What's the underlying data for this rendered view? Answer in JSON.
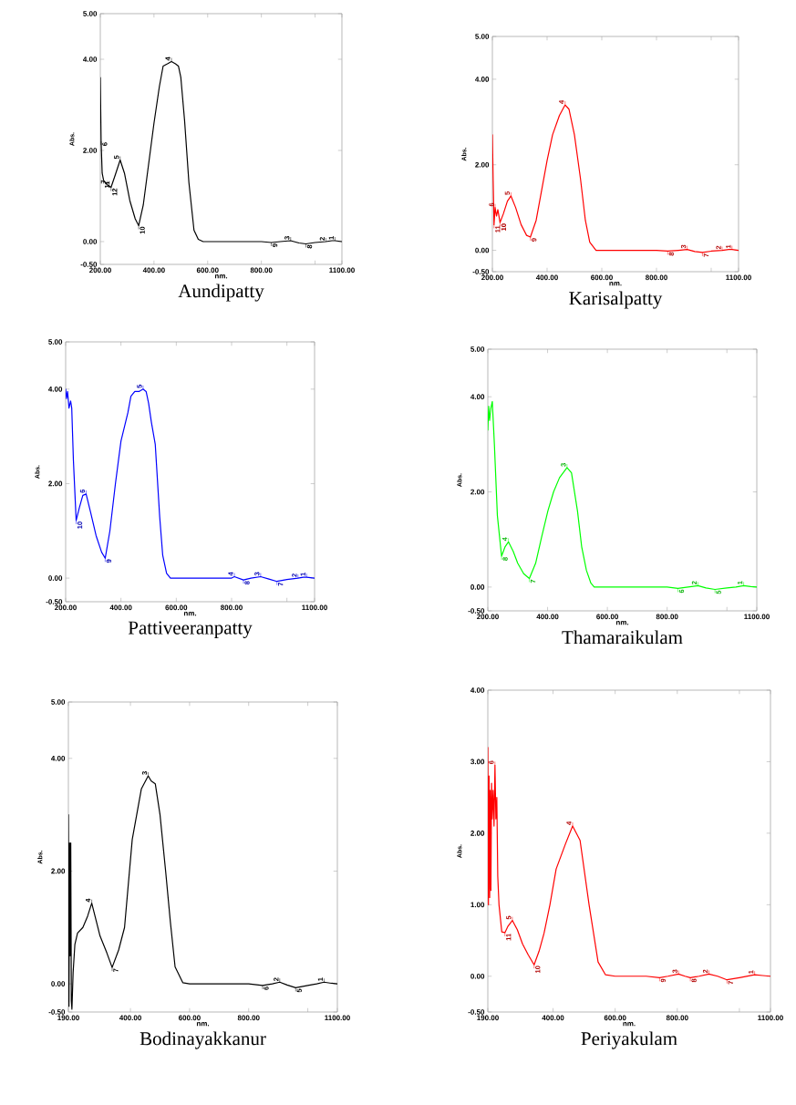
{
  "chart_data": [
    {
      "type": "line",
      "title": "Aundipatty",
      "xlabel": "nm.",
      "ylabel": "Abs.",
      "marker": "none",
      "x": [
        200,
        203,
        207,
        212,
        218,
        225,
        240,
        255,
        274,
        290,
        310,
        330,
        343,
        360,
        380,
        400,
        420,
        434,
        450,
        465,
        480,
        491,
        500,
        514,
        530,
        549,
        565,
        583,
        600,
        700,
        800,
        837,
        870,
        909,
        940,
        966,
        1000,
        1040,
        1063,
        1074,
        1100
      ],
      "series": [
        {
          "color": "#000000",
          "values": [
            3.6,
            2.2,
            1.5,
            1.35,
            1.3,
            1.25,
            1.19,
            1.45,
            1.79,
            1.5,
            0.9,
            0.5,
            0.35,
            0.8,
            1.7,
            2.6,
            3.4,
            3.85,
            3.9,
            3.95,
            3.9,
            3.85,
            3.6,
            2.65,
            1.3,
            0.25,
            0.05,
            0,
            0,
            0,
            0,
            -0.02,
            0,
            0.02,
            -0.03,
            -0.05,
            -0.02,
            0,
            0.02,
            0.02,
            0
          ]
        }
      ],
      "xlim": [
        200,
        1100
      ],
      "ylim": [
        -0.5,
        5
      ],
      "xticks": [
        {
          "value": 200,
          "label": "200.00"
        },
        {
          "value": 400,
          "label": "400.00"
        },
        {
          "value": 600,
          "label": "600.00"
        },
        {
          "value": 800,
          "label": "800.00"
        },
        {
          "value": 1000,
          "label": null
        },
        {
          "value": 1100,
          "label": "1100.00"
        }
      ],
      "yticks": [
        {
          "value": -0.5,
          "label": "-0.50"
        },
        {
          "value": 0,
          "label": "0.00"
        },
        {
          "value": 2,
          "label": "2.00"
        },
        {
          "value": 4,
          "label": "4.00"
        },
        {
          "value": 5,
          "label": "5.00"
        }
      ],
      "annotations": [
        {
          "text": "4",
          "x": 465,
          "y": 3.95
        },
        {
          "text": "5",
          "x": 274,
          "y": 1.79
        },
        {
          "text": "10",
          "x": 343,
          "y": 0.35
        },
        {
          "text": "6",
          "x": 203,
          "y": 2.2
        },
        {
          "text": "7",
          "x": 225,
          "y": 1.25
        },
        {
          "text": "11",
          "x": 212,
          "y": 1.35
        },
        {
          "text": "12",
          "x": 240,
          "y": 1.19
        },
        {
          "text": "9",
          "x": 837,
          "y": -0.02
        },
        {
          "text": "3",
          "x": 909,
          "y": 0.02
        },
        {
          "text": "8",
          "x": 966,
          "y": -0.05
        },
        {
          "text": "2",
          "x": 1040,
          "y": 0
        },
        {
          "text": "1",
          "x": 1074,
          "y": 0.02
        }
      ]
    },
    {
      "type": "line",
      "title": "Karisalpatty",
      "xlabel": "nm.",
      "ylabel": "Abs.",
      "marker": "none",
      "x": [
        200,
        203,
        206,
        210,
        215,
        220,
        228,
        240,
        255,
        268,
        285,
        305,
        325,
        339,
        360,
        380,
        400,
        420,
        445,
        466,
        480,
        500,
        522,
        540,
        556,
        579,
        600,
        700,
        800,
        841,
        880,
        912,
        940,
        968,
        1000,
        1040,
        1064,
        1076,
        1100
      ],
      "series": [
        {
          "color": "#ff0000",
          "values": [
            2.7,
            1.6,
            0.6,
            1.0,
            0.8,
            0.95,
            0.65,
            0.85,
            1.15,
            1.27,
            1.0,
            0.6,
            0.35,
            0.31,
            0.7,
            1.4,
            2.1,
            2.7,
            3.15,
            3.4,
            3.3,
            2.7,
            1.68,
            0.7,
            0.19,
            0,
            0,
            0,
            0,
            -0.02,
            0,
            0.02,
            -0.03,
            -0.05,
            -0.02,
            0,
            0.02,
            0.02,
            0
          ]
        }
      ],
      "xlim": [
        200,
        1100
      ],
      "ylim": [
        -0.5,
        5
      ],
      "xticks": [
        {
          "value": 200,
          "label": "200.00"
        },
        {
          "value": 400,
          "label": "400.00"
        },
        {
          "value": 600,
          "label": "600.00"
        },
        {
          "value": 800,
          "label": "800.00"
        },
        {
          "value": 1000,
          "label": null
        },
        {
          "value": 1100,
          "label": "1100.00"
        }
      ],
      "yticks": [
        {
          "value": -0.5,
          "label": "-0.50"
        },
        {
          "value": 0,
          "label": "0.00"
        },
        {
          "value": 2,
          "label": "2.00"
        },
        {
          "value": 4,
          "label": "4.00"
        },
        {
          "value": 5,
          "label": "5.00"
        }
      ],
      "annotations": [
        {
          "text": "4",
          "x": 466,
          "y": 3.4
        },
        {
          "text": "5",
          "x": 268,
          "y": 1.27
        },
        {
          "text": "9",
          "x": 339,
          "y": 0.31
        },
        {
          "text": "6",
          "x": 210,
          "y": 1.0
        },
        {
          "text": "10",
          "x": 228,
          "y": 0.65
        },
        {
          "text": "11",
          "x": 206,
          "y": 0.6
        },
        {
          "text": "8",
          "x": 841,
          "y": -0.02
        },
        {
          "text": "3",
          "x": 912,
          "y": 0.02
        },
        {
          "text": "7",
          "x": 968,
          "y": -0.05
        },
        {
          "text": "2",
          "x": 1040,
          "y": 0
        },
        {
          "text": "1",
          "x": 1076,
          "y": 0.02
        }
      ]
    },
    {
      "type": "line",
      "title": "Pattiveeranpatty",
      "xlabel": "nm.",
      "ylabel": "Abs.",
      "marker": "none",
      "x": [
        200,
        203,
        207,
        212,
        218,
        222,
        228,
        238,
        250,
        262,
        274,
        290,
        310,
        330,
        343,
        360,
        380,
        400,
        425,
        436,
        450,
        465,
        480,
        491,
        500,
        510,
        524,
        540,
        551,
        565,
        579,
        600,
        700,
        800,
        810,
        843,
        870,
        905,
        935,
        964,
        1000,
        1040,
        1059,
        1071,
        1100
      ],
      "series": [
        {
          "color": "#0000ff",
          "values": [
            4.0,
            3.8,
            3.95,
            3.6,
            3.75,
            3.6,
            2.5,
            1.22,
            1.5,
            1.75,
            1.78,
            1.4,
            0.9,
            0.55,
            0.42,
            1.0,
            2.0,
            2.9,
            3.5,
            3.85,
            3.95,
            3.95,
            4.0,
            3.95,
            3.7,
            3.3,
            2.83,
            1.3,
            0.48,
            0.1,
            0,
            0,
            0,
            0,
            0.03,
            -0.04,
            0,
            0.03,
            -0.02,
            -0.07,
            -0.03,
            0,
            0.02,
            0.02,
            0
          ]
        }
      ],
      "xlim": [
        200,
        1100
      ],
      "ylim": [
        -0.5,
        5
      ],
      "xticks": [
        {
          "value": 200,
          "label": "200.00"
        },
        {
          "value": 400,
          "label": "400.00"
        },
        {
          "value": 600,
          "label": "600.00"
        },
        {
          "value": 800,
          "label": "800.00"
        },
        {
          "value": 1000,
          "label": null
        },
        {
          "value": 1100,
          "label": "1100.00"
        }
      ],
      "yticks": [
        {
          "value": -0.5,
          "label": "-0.50"
        },
        {
          "value": 0,
          "label": "0.00"
        },
        {
          "value": 2,
          "label": "2.00"
        },
        {
          "value": 4,
          "label": "4.00"
        },
        {
          "value": 5,
          "label": "5.00"
        }
      ],
      "annotations": [
        {
          "text": "5",
          "x": 480,
          "y": 4.0
        },
        {
          "text": "6",
          "x": 274,
          "y": 1.78
        },
        {
          "text": "10",
          "x": 238,
          "y": 1.22
        },
        {
          "text": "9",
          "x": 343,
          "y": 0.42
        },
        {
          "text": "4",
          "x": 810,
          "y": 0.03
        },
        {
          "text": "8",
          "x": 843,
          "y": -0.04
        },
        {
          "text": "3",
          "x": 905,
          "y": 0.03
        },
        {
          "text": "7",
          "x": 964,
          "y": -0.07
        },
        {
          "text": "2",
          "x": 1040,
          "y": 0
        },
        {
          "text": "1",
          "x": 1071,
          "y": 0.02
        }
      ]
    },
    {
      "type": "line",
      "title": "Thamaraikulam",
      "xlabel": "nm.",
      "ylabel": "Abs.",
      "marker": "none",
      "x": [
        200,
        203,
        206,
        210,
        215,
        222,
        232,
        246,
        258,
        269,
        285,
        300,
        320,
        339,
        360,
        380,
        401,
        420,
        440,
        465,
        480,
        500,
        514,
        530,
        545,
        556,
        600,
        700,
        800,
        836,
        870,
        903,
        930,
        960,
        1000,
        1030,
        1056,
        1080,
        1100
      ],
      "series": [
        {
          "color": "#00ff00",
          "values": [
            3.3,
            3.8,
            3.5,
            3.75,
            3.9,
            3.0,
            1.5,
            0.65,
            0.85,
            0.95,
            0.75,
            0.5,
            0.28,
            0.18,
            0.5,
            1.05,
            1.6,
            2.0,
            2.3,
            2.51,
            2.4,
            1.6,
            0.85,
            0.35,
            0.08,
            0,
            0,
            0,
            0,
            -0.03,
            0,
            0.03,
            -0.02,
            -0.05,
            -0.02,
            0,
            0.03,
            0.01,
            0
          ]
        }
      ],
      "xlim": [
        200,
        1100
      ],
      "ylim": [
        -0.5,
        5
      ],
      "xticks": [
        {
          "value": 200,
          "label": "200.00"
        },
        {
          "value": 400,
          "label": "400.00"
        },
        {
          "value": 600,
          "label": "600.00"
        },
        {
          "value": 800,
          "label": "800.00"
        },
        {
          "value": 1000,
          "label": null
        },
        {
          "value": 1100,
          "label": "1100.00"
        }
      ],
      "yticks": [
        {
          "value": -0.5,
          "label": "-0.50"
        },
        {
          "value": 0,
          "label": "0.00"
        },
        {
          "value": 2,
          "label": "2.00"
        },
        {
          "value": 4,
          "label": "4.00"
        },
        {
          "value": 5,
          "label": "5.00"
        }
      ],
      "annotations": [
        {
          "text": "3",
          "x": 465,
          "y": 2.51
        },
        {
          "text": "4",
          "x": 269,
          "y": 0.95
        },
        {
          "text": "8",
          "x": 246,
          "y": 0.65
        },
        {
          "text": "7",
          "x": 339,
          "y": 0.18
        },
        {
          "text": "6",
          "x": 836,
          "y": -0.03
        },
        {
          "text": "2",
          "x": 903,
          "y": 0.03
        },
        {
          "text": "5",
          "x": 960,
          "y": -0.05
        },
        {
          "text": "1",
          "x": 1056,
          "y": 0.03
        }
      ]
    },
    {
      "type": "line",
      "title": "Bodinayakkanur",
      "xlabel": "nm.",
      "ylabel": "Abs.",
      "marker": "none",
      "x": [
        190,
        192,
        194,
        196,
        198,
        200,
        202,
        206,
        212,
        221,
        239,
        255,
        269,
        285,
        297,
        320,
        338,
        360,
        380,
        406,
        437,
        460,
        470,
        484,
        500,
        519,
        535,
        551,
        577,
        600,
        700,
        800,
        847,
        880,
        905,
        930,
        959,
        1000,
        1030,
        1055,
        1080,
        1100
      ],
      "series": [
        {
          "color": "#000000",
          "values": [
            3.0,
            -0.4,
            2.5,
            0.5,
            2.5,
            -0.3,
            -0.45,
            0.2,
            0.7,
            0.9,
            1.0,
            1.2,
            1.43,
            1.1,
            0.85,
            0.55,
            0.29,
            0.6,
            1.0,
            2.56,
            3.46,
            3.69,
            3.6,
            3.55,
            3.0,
            2.0,
            1.1,
            0.3,
            0.02,
            0,
            0,
            0,
            -0.03,
            0,
            0.03,
            -0.02,
            -0.07,
            -0.03,
            0,
            0.03,
            0.01,
            0
          ]
        }
      ],
      "xlim": [
        190,
        1100
      ],
      "ylim": [
        -0.5,
        5
      ],
      "xticks": [
        {
          "value": 190,
          "label": "190.00"
        },
        {
          "value": 400,
          "label": "400.00"
        },
        {
          "value": 600,
          "label": "600.00"
        },
        {
          "value": 800,
          "label": "800.00"
        },
        {
          "value": 1000,
          "label": null
        },
        {
          "value": 1100,
          "label": "1100.00"
        }
      ],
      "yticks": [
        {
          "value": -0.5,
          "label": "-0.50"
        },
        {
          "value": 0,
          "label": "0.00"
        },
        {
          "value": 2,
          "label": "2.00"
        },
        {
          "value": 4,
          "label": "4.00"
        },
        {
          "value": 5,
          "label": "5.00"
        }
      ],
      "annotations": [
        {
          "text": "3",
          "x": 460,
          "y": 3.69
        },
        {
          "text": "4",
          "x": 269,
          "y": 1.43
        },
        {
          "text": "7",
          "x": 338,
          "y": 0.29
        },
        {
          "text": "6",
          "x": 847,
          "y": -0.03
        },
        {
          "text": "2",
          "x": 905,
          "y": 0.03
        },
        {
          "text": "5",
          "x": 959,
          "y": -0.07
        },
        {
          "text": "1",
          "x": 1055,
          "y": 0.03
        }
      ]
    },
    {
      "type": "line",
      "title": "Periyakulam",
      "xlabel": "nm.",
      "ylabel": "Abs.",
      "marker": "none",
      "x": [
        190,
        192,
        194,
        196,
        198,
        200,
        202,
        204,
        207,
        210,
        213,
        216,
        219,
        222,
        226,
        235,
        245,
        255,
        269,
        285,
        302,
        320,
        339,
        355,
        371,
        390,
        410,
        440,
        463,
        487,
        516,
        545,
        569,
        600,
        700,
        743,
        770,
        804,
        825,
        842,
        870,
        902,
        930,
        960,
        1000,
        1049,
        1075,
        1100
      ],
      "series": [
        {
          "color": "#ff0000",
          "values": [
            3.2,
            1.0,
            2.8,
            1.1,
            2.6,
            1.2,
            2.7,
            2.2,
            2.6,
            2.1,
            2.95,
            2.2,
            2.5,
            1.4,
            1.0,
            0.62,
            0.61,
            0.7,
            0.78,
            0.65,
            0.45,
            0.3,
            0.16,
            0.35,
            0.6,
            1.0,
            1.5,
            1.85,
            2.1,
            1.9,
            1.0,
            0.2,
            0.02,
            0,
            0,
            -0.02,
            0,
            0.03,
            0,
            -0.02,
            0,
            0.03,
            0,
            -0.05,
            -0.02,
            0.02,
            0.01,
            0
          ]
        }
      ],
      "xlim": [
        190,
        1100
      ],
      "ylim": [
        -0.5,
        4
      ],
      "xticks": [
        {
          "value": 190,
          "label": "190.00"
        },
        {
          "value": 400,
          "label": "400.00"
        },
        {
          "value": 600,
          "label": "600.00"
        },
        {
          "value": 800,
          "label": "800.00"
        },
        {
          "value": 1000,
          "label": null
        },
        {
          "value": 1100,
          "label": "1100.00"
        }
      ],
      "yticks": [
        {
          "value": -0.5,
          "label": "-0.50"
        },
        {
          "value": 0,
          "label": "0.00"
        },
        {
          "value": 1,
          "label": "1.00"
        },
        {
          "value": 2,
          "label": "2.00"
        },
        {
          "value": 3,
          "label": "3.00"
        },
        {
          "value": 4,
          "label": "4.00"
        }
      ],
      "annotations": [
        {
          "text": "6",
          "x": 213,
          "y": 2.95
        },
        {
          "text": "5",
          "x": 269,
          "y": 0.78
        },
        {
          "text": "11",
          "x": 245,
          "y": 0.61
        },
        {
          "text": "10",
          "x": 339,
          "y": 0.16
        },
        {
          "text": "4",
          "x": 463,
          "y": 2.1
        },
        {
          "text": "9",
          "x": 743,
          "y": -0.02
        },
        {
          "text": "3",
          "x": 804,
          "y": 0.03
        },
        {
          "text": "8",
          "x": 842,
          "y": -0.02
        },
        {
          "text": "2",
          "x": 902,
          "y": 0.03
        },
        {
          "text": "7",
          "x": 960,
          "y": -0.05
        },
        {
          "text": "1",
          "x": 1049,
          "y": 0.02
        }
      ]
    }
  ]
}
